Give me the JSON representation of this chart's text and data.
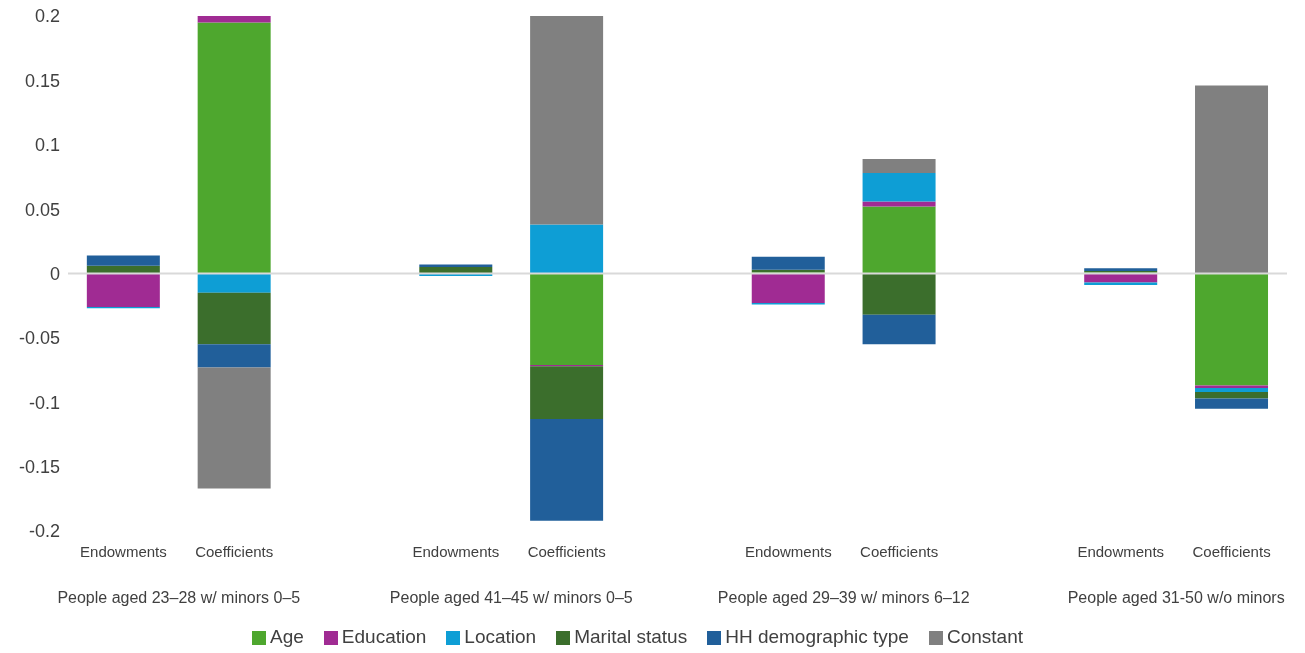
{
  "chart_data": {
    "type": "bar",
    "stacked": true,
    "categories": [
      "Endowments",
      "Coefficients",
      null,
      "Endowments",
      "Coefficients",
      null,
      "Endowments",
      "Coefficients",
      null,
      "Endowments",
      "Coefficients"
    ],
    "series": [
      {
        "name": "Age",
        "color": "#4ea72e",
        "values": [
          0,
          0.195,
          null,
          0,
          -0.071,
          null,
          0.001,
          0.052,
          null,
          0.001,
          -0.087
        ]
      },
      {
        "name": "Education",
        "color": "#a02b93",
        "values": [
          -0.026,
          0.005,
          null,
          null,
          -0.001,
          null,
          -0.023,
          0.004,
          null,
          -0.007,
          -0.002
        ]
      },
      {
        "name": "Location",
        "color": "#0e9ed5",
        "values": [
          -0.001,
          -0.015,
          null,
          -0.002,
          0.038,
          null,
          -0.001,
          0.022,
          null,
          -0.002,
          -0.003
        ]
      },
      {
        "name": "Marital status",
        "color": "#3b6e2c",
        "values": [
          0.006,
          -0.04,
          null,
          0.005,
          -0.041,
          null,
          0.002,
          -0.032,
          null,
          0.001,
          -0.005
        ]
      },
      {
        "name": "HH demographic type",
        "color": "#215f9a",
        "values": [
          0.008,
          -0.018,
          null,
          0.002,
          -0.079,
          null,
          0.01,
          -0.023,
          null,
          0.002,
          -0.008
        ]
      },
      {
        "name": "Constant",
        "color": "#808080",
        "values": [
          0,
          -0.094,
          null,
          0,
          0.162,
          null,
          0,
          0.011,
          null,
          0,
          0.146
        ]
      }
    ],
    "annotations": [
      "People aged 23–28 w/ minors 0–5",
      "People aged 41–45  w/ minors 0–5",
      "People aged 29–39  w/ minors 6–12",
      "People aged 31-50 w/o minors"
    ],
    "ylim": [
      -0.2,
      0.2
    ],
    "yticks": [
      -0.2,
      -0.15,
      -0.1,
      -0.05,
      0,
      0.05,
      0.1,
      0.15,
      0.2
    ],
    "ref_lines": [
      {
        "axis": "y",
        "value": 0,
        "color": "#d9d9d9"
      }
    ],
    "grid": false,
    "legend": "bottom"
  }
}
